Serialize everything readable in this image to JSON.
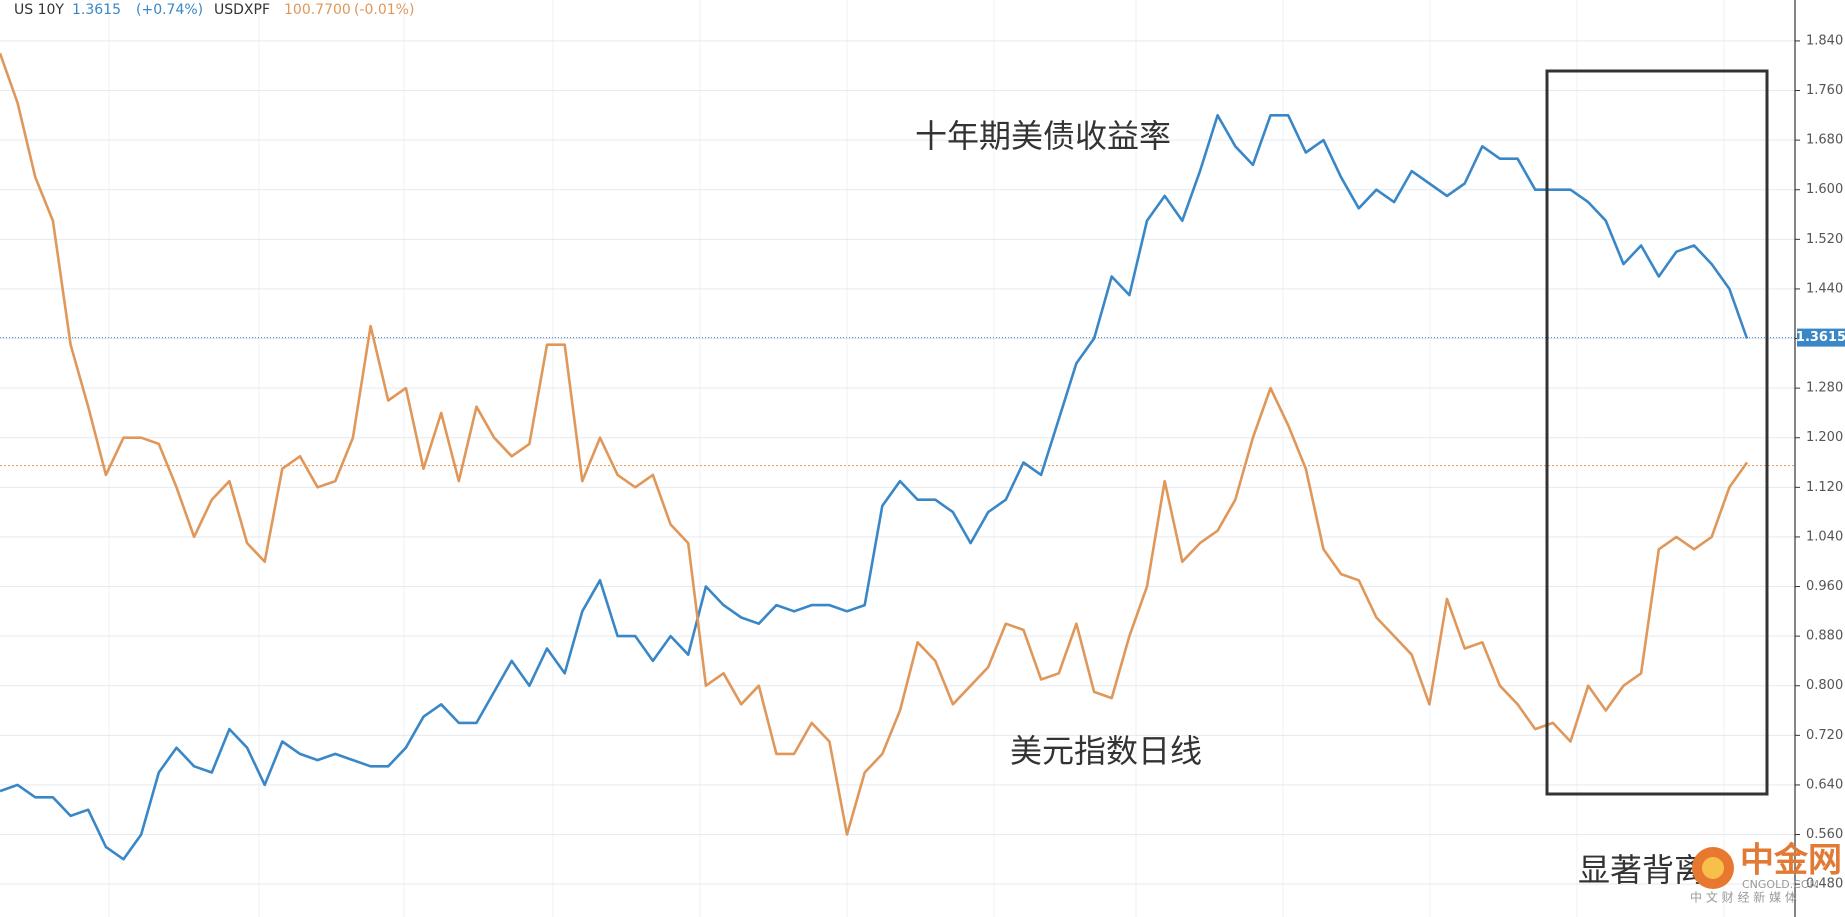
{
  "chart_data": {
    "type": "line",
    "annotations": [
      "十年期美债收益率",
      "美元指数日线",
      "显著背离"
    ],
    "watermark": {
      "name": "中金网",
      "site": "CNGOLD.COM",
      "slogan": "中 文 财 经 新 媒 体"
    },
    "ylim": [
      0.427,
      1.906
    ],
    "yticks": [
      {
        "value": 0.48,
        "label": "0.480"
      },
      {
        "value": 0.56,
        "label": "0.560"
      },
      {
        "value": 0.64,
        "label": "0.640"
      },
      {
        "value": 0.72,
        "label": "0.720"
      },
      {
        "value": 0.8,
        "label": "0.800"
      },
      {
        "value": 0.88,
        "label": "0.880"
      },
      {
        "value": 0.96,
        "label": "0.960"
      },
      {
        "value": 1.04,
        "label": "1.040"
      },
      {
        "value": 1.12,
        "label": "1.120"
      },
      {
        "value": 1.2,
        "label": "1.200"
      },
      {
        "value": 1.28,
        "label": "1.280"
      },
      {
        "value": 1.36,
        "label": "1.360"
      },
      {
        "value": 1.44,
        "label": "1.440"
      },
      {
        "value": 1.52,
        "label": "1.520"
      },
      {
        "value": 1.6,
        "label": "1.600"
      },
      {
        "value": 1.68,
        "label": "1.680"
      },
      {
        "value": 1.76,
        "label": "1.760"
      },
      {
        "value": 1.84,
        "label": "1.840"
      }
    ],
    "grid": true,
    "series": [
      {
        "name": "US 10Y",
        "color": "#3a87c8",
        "last_value": 1.3615,
        "change": "(+0.74%)",
        "values": [
          0.63,
          0.64,
          0.62,
          0.62,
          0.59,
          0.6,
          0.54,
          0.52,
          0.56,
          0.66,
          0.7,
          0.67,
          0.66,
          0.73,
          0.7,
          0.64,
          0.71,
          0.69,
          0.68,
          0.69,
          0.68,
          0.67,
          0.67,
          0.7,
          0.75,
          0.77,
          0.74,
          0.74,
          0.79,
          0.84,
          0.8,
          0.86,
          0.82,
          0.92,
          0.97,
          0.88,
          0.88,
          0.84,
          0.88,
          0.85,
          0.96,
          0.93,
          0.91,
          0.9,
          0.93,
          0.92,
          0.93,
          0.93,
          0.92,
          0.93,
          1.09,
          1.13,
          1.1,
          1.1,
          1.08,
          1.03,
          1.08,
          1.1,
          1.16,
          1.14,
          1.23,
          1.32,
          1.36,
          1.46,
          1.43,
          1.55,
          1.59,
          1.55,
          1.63,
          1.72,
          1.67,
          1.64,
          1.72,
          1.72,
          1.66,
          1.68,
          1.62,
          1.57,
          1.6,
          1.58,
          1.63,
          1.61,
          1.59,
          1.61,
          1.67,
          1.65,
          1.65,
          1.6,
          1.6,
          1.6,
          1.58,
          1.55,
          1.48,
          1.51,
          1.46,
          1.5,
          1.51,
          1.48,
          1.44,
          1.36
        ]
      },
      {
        "name": "USDXPF",
        "color": "#e0975a",
        "quote": "100.7700",
        "change": "(-0.01%)",
        "price_line": 1.155,
        "values": [
          1.82,
          1.74,
          1.62,
          1.55,
          1.35,
          1.25,
          1.14,
          1.2,
          1.2,
          1.19,
          1.12,
          1.04,
          1.1,
          1.13,
          1.03,
          1.0,
          1.15,
          1.17,
          1.12,
          1.13,
          1.2,
          1.38,
          1.26,
          1.28,
          1.15,
          1.24,
          1.13,
          1.25,
          1.2,
          1.17,
          1.19,
          1.35,
          1.35,
          1.13,
          1.2,
          1.14,
          1.12,
          1.14,
          1.06,
          1.03,
          0.8,
          0.82,
          0.77,
          0.8,
          0.69,
          0.69,
          0.74,
          0.71,
          0.56,
          0.66,
          0.69,
          0.76,
          0.87,
          0.84,
          0.77,
          0.8,
          0.83,
          0.9,
          0.89,
          0.81,
          0.82,
          0.9,
          0.79,
          0.78,
          0.88,
          0.96,
          1.13,
          1.0,
          1.03,
          1.05,
          1.1,
          1.2,
          1.28,
          1.22,
          1.15,
          1.02,
          0.98,
          0.97,
          0.91,
          0.88,
          0.85,
          0.77,
          0.94,
          0.86,
          0.87,
          0.8,
          0.77,
          0.73,
          0.74,
          0.71,
          0.8,
          0.76,
          0.8,
          0.82,
          1.02,
          1.04,
          1.02,
          1.04,
          1.12,
          1.16
        ]
      }
    ]
  }
}
